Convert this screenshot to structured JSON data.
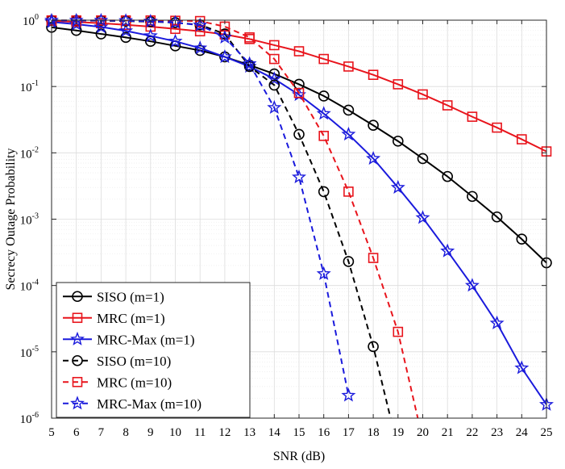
{
  "chart_data": {
    "type": "line",
    "title": "",
    "xlabel": "SNR (dB)",
    "ylabel": "Secrecy Outage Probability",
    "yscale": "log",
    "xlim": [
      5,
      25
    ],
    "ylim": [
      1e-06,
      1
    ],
    "grid": true,
    "legend_position": "bottom-left",
    "x_ticks": [
      5,
      6,
      7,
      8,
      9,
      10,
      11,
      12,
      13,
      14,
      15,
      16,
      17,
      18,
      19,
      20,
      21,
      22,
      23,
      24,
      25
    ],
    "y_ticks": [
      {
        "value": 1,
        "base": "10",
        "exp": "0"
      },
      {
        "value": 0.1,
        "base": "10",
        "exp": "-1"
      },
      {
        "value": 0.01,
        "base": "10",
        "exp": "-2"
      },
      {
        "value": 0.001,
        "base": "10",
        "exp": "-3"
      },
      {
        "value": 0.0001,
        "base": "10",
        "exp": "-4"
      },
      {
        "value": 1e-05,
        "base": "10",
        "exp": "-5"
      },
      {
        "value": 1e-06,
        "base": "10",
        "exp": "-6"
      }
    ],
    "series": [
      {
        "name": "SISO (m=1)",
        "color": "#000000",
        "dashed": false,
        "marker": "circle",
        "x": [
          5,
          6,
          7,
          8,
          9,
          10,
          11,
          12,
          13,
          14,
          15,
          16,
          17,
          18,
          19,
          20,
          21,
          22,
          23,
          24,
          25
        ],
        "values": [
          0.78,
          0.7,
          0.62,
          0.55,
          0.48,
          0.41,
          0.35,
          0.28,
          0.21,
          0.155,
          0.108,
          0.072,
          0.044,
          0.026,
          0.015,
          0.0082,
          0.0044,
          0.0022,
          0.00108,
          0.0005,
          0.00022
        ]
      },
      {
        "name": "MRC (m=1)",
        "color": "#e8141c",
        "dashed": false,
        "marker": "square",
        "x": [
          5,
          6,
          7,
          8,
          9,
          10,
          11,
          12,
          13,
          14,
          15,
          16,
          17,
          18,
          19,
          20,
          21,
          22,
          23,
          24,
          25
        ],
        "values": [
          0.98,
          0.94,
          0.9,
          0.85,
          0.8,
          0.74,
          0.68,
          0.61,
          0.52,
          0.42,
          0.34,
          0.26,
          0.2,
          0.15,
          0.108,
          0.076,
          0.052,
          0.035,
          0.024,
          0.016,
          0.0105
        ]
      },
      {
        "name": "MRC-Max (m=1)",
        "color": "#1a1adc",
        "dashed": false,
        "marker": "star",
        "x": [
          5,
          6,
          7,
          8,
          9,
          10,
          11,
          12,
          13,
          14,
          15,
          16,
          17,
          18,
          19,
          20,
          21,
          22,
          23,
          24,
          25
        ],
        "values": [
          0.94,
          0.87,
          0.79,
          0.69,
          0.58,
          0.48,
          0.38,
          0.28,
          0.2,
          0.13,
          0.075,
          0.039,
          0.019,
          0.0082,
          0.003,
          0.00105,
          0.00033,
          0.0001,
          2.7e-05,
          5.7e-06,
          1.6e-06
        ]
      },
      {
        "name": "SISO (m=10)",
        "color": "#000000",
        "dashed": true,
        "marker": "circle",
        "x": [
          5,
          6,
          7,
          8,
          9,
          10,
          11,
          12,
          13,
          14,
          15,
          16,
          17,
          18,
          18.7
        ],
        "values": [
          0.99,
          0.99,
          0.98,
          0.97,
          0.95,
          0.92,
          0.85,
          0.62,
          0.2,
          0.105,
          0.019,
          0.0026,
          0.00023,
          1.2e-05,
          1e-06
        ]
      },
      {
        "name": "MRC (m=10)",
        "color": "#e8141c",
        "dashed": true,
        "marker": "square",
        "x": [
          5,
          6,
          7,
          8,
          9,
          10,
          11,
          12,
          13,
          14,
          15,
          16,
          17,
          18,
          19,
          19.8
        ],
        "values": [
          0.99,
          0.99,
          0.99,
          0.99,
          0.99,
          0.98,
          0.97,
          0.8,
          0.55,
          0.26,
          0.08,
          0.018,
          0.0026,
          0.00026,
          2e-05,
          1e-06
        ]
      },
      {
        "name": "MRC-Max (m=10)",
        "color": "#1a1adc",
        "dashed": true,
        "marker": "star",
        "x": [
          5,
          6,
          7,
          8,
          9,
          10,
          11,
          12,
          13,
          14,
          15,
          16,
          17
        ],
        "values": [
          0.99,
          0.99,
          0.99,
          0.98,
          0.96,
          0.92,
          0.84,
          0.55,
          0.22,
          0.048,
          0.0043,
          0.00015,
          2.2e-06
        ]
      }
    ]
  }
}
